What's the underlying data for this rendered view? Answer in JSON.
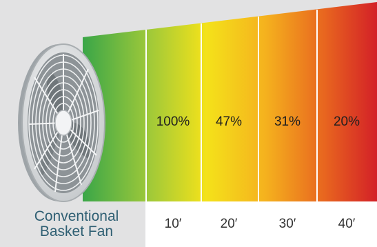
{
  "fan_label": {
    "line1": "Conventional",
    "line2": "Basket Fan"
  },
  "zones": [
    {
      "percent": "100%",
      "distance": "10′"
    },
    {
      "percent": "47%",
      "distance": "20′"
    },
    {
      "percent": "31%",
      "distance": "30′"
    },
    {
      "percent": "20%",
      "distance": "40′"
    }
  ],
  "colors": {
    "background": "#e2e2e3",
    "gradient": [
      "#3aa648",
      "#9cc83a",
      "#f4e21a",
      "#f5b21e",
      "#e8661f",
      "#d32027"
    ],
    "caption_text": "#2f5f73"
  },
  "icons": {
    "fan": "basket-fan-icon"
  }
}
